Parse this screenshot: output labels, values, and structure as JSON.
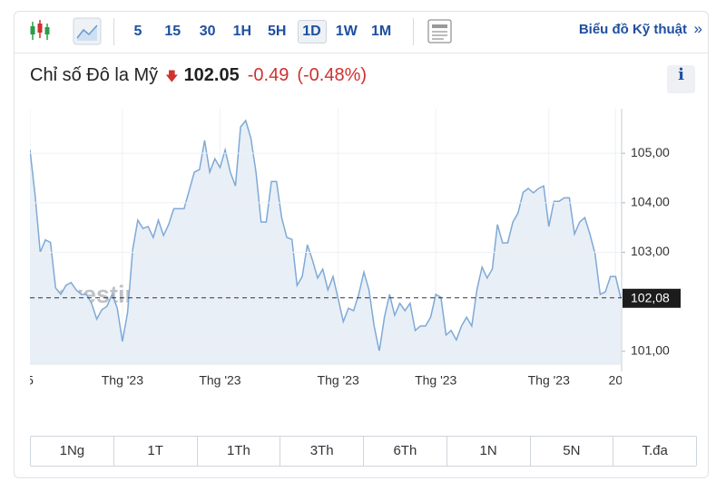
{
  "toolbar": {
    "intervals": [
      "5",
      "15",
      "30",
      "1H",
      "5H",
      "1D",
      "1W",
      "1M"
    ],
    "active": "1D",
    "link": "Biểu đồ Kỹ thuật"
  },
  "header": {
    "title": "Chỉ số Đô la Mỹ",
    "price": "102.05",
    "change": "-0.49",
    "change_pct": "(-0.48%)",
    "info": "i"
  },
  "ranges": [
    "1Ng",
    "1T",
    "1Th",
    "3Th",
    "6Th",
    "1N",
    "5N",
    "T.đa"
  ],
  "chart_data": {
    "type": "line",
    "watermark": "Investing.com",
    "color": "#7fa9d6",
    "fill": "#e8eff7",
    "categories": [
      "5",
      null,
      null,
      null,
      null,
      null,
      null,
      null,
      null,
      null,
      null,
      null,
      null,
      null,
      null,
      null,
      null,
      null,
      "Thg '23",
      null,
      null,
      null,
      null,
      null,
      null,
      null,
      null,
      null,
      null,
      null,
      null,
      null,
      null,
      null,
      null,
      null,
      null,
      "Thg '23",
      null,
      null,
      null,
      null,
      null,
      null,
      null,
      null,
      null,
      null,
      null,
      null,
      null,
      null,
      null,
      null,
      null,
      null,
      null,
      null,
      null,
      null,
      "Thg '23",
      null,
      null,
      null,
      null,
      null,
      null,
      null,
      null,
      null,
      null,
      null,
      null,
      null,
      null,
      null,
      null,
      null,
      null,
      "Thg '23",
      null,
      null,
      null,
      null,
      null,
      null,
      null,
      null,
      null,
      null,
      null,
      null,
      null,
      null,
      null,
      null,
      null,
      null,
      null,
      null,
      null,
      "Thg '23",
      null,
      null,
      null,
      null,
      null,
      null,
      null,
      null,
      null,
      null,
      null,
      null,
      "20",
      null
    ],
    "values": [
      105.07,
      104.16,
      103.0,
      103.25,
      103.2,
      102.28,
      102.15,
      102.33,
      102.39,
      102.24,
      102.15,
      102.15,
      101.97,
      101.65,
      101.84,
      101.91,
      102.15,
      101.87,
      101.2,
      101.78,
      103.06,
      103.65,
      103.48,
      103.52,
      103.3,
      103.65,
      103.34,
      103.56,
      103.88,
      103.88,
      103.88,
      104.25,
      104.62,
      104.67,
      105.26,
      104.62,
      104.89,
      104.71,
      105.07,
      104.62,
      104.34,
      105.53,
      105.66,
      105.31,
      104.62,
      103.61,
      103.61,
      104.43,
      104.43,
      103.7,
      103.3,
      103.26,
      102.33,
      102.51,
      103.15,
      102.84,
      102.48,
      102.66,
      102.24,
      102.51,
      102.06,
      101.6,
      101.87,
      101.82,
      102.15,
      102.6,
      102.24,
      101.51,
      101.0,
      101.69,
      102.15,
      101.73,
      101.97,
      101.82,
      101.97,
      101.42,
      101.51,
      101.51,
      101.69,
      102.15,
      102.09,
      101.33,
      101.42,
      101.23,
      101.51,
      101.69,
      101.51,
      102.24,
      102.7,
      102.48,
      102.66,
      103.56,
      103.19,
      103.19,
      103.61,
      103.79,
      104.21,
      104.29,
      104.2,
      104.29,
      104.34,
      103.52,
      104.03,
      104.03,
      104.1,
      104.1,
      103.37,
      103.61,
      103.7,
      103.37,
      102.97,
      102.15,
      102.2,
      102.51,
      102.51,
      102.08
    ],
    "current_value": 102.08,
    "current_label": "102,08",
    "ylim": [
      100.74,
      105.9
    ],
    "yticks": [
      {
        "value": 101,
        "label": "101,00"
      },
      {
        "value": 103,
        "label": "103,00"
      },
      {
        "value": 104,
        "label": "104,00"
      },
      {
        "value": 105,
        "label": "105,00"
      }
    ],
    "grid": true
  }
}
